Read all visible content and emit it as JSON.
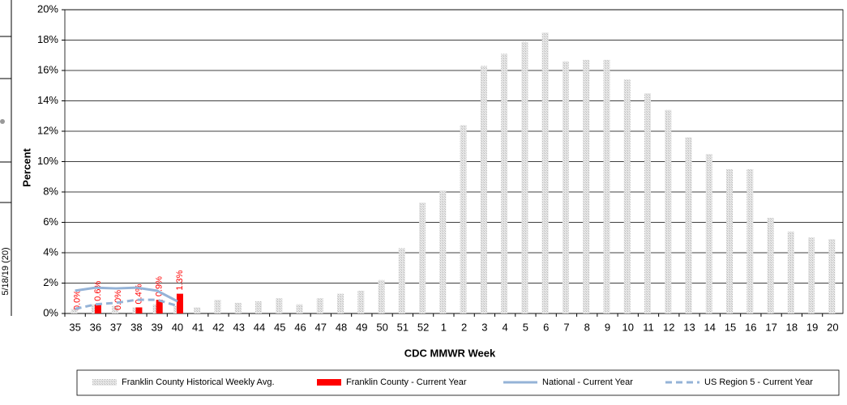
{
  "chart_data": {
    "type": "bar",
    "side_label": "5/18/19 (20)",
    "x_label": "CDC MMWR Week",
    "y_label": "Percent",
    "categories": [
      "35",
      "36",
      "37",
      "38",
      "39",
      "40",
      "41",
      "42",
      "43",
      "44",
      "45",
      "46",
      "47",
      "48",
      "49",
      "50",
      "51",
      "52",
      "1",
      "2",
      "3",
      "4",
      "5",
      "6",
      "7",
      "8",
      "9",
      "10",
      "11",
      "12",
      "13",
      "14",
      "15",
      "16",
      "17",
      "18",
      "19",
      "20"
    ],
    "series": [
      {
        "name": "Franklin County Historical Weekly Avg.",
        "kind": "bar",
        "color": "#d4d4d4",
        "values": [
          0.3,
          0.6,
          0.5,
          0.4,
          0.6,
          0.5,
          0.4,
          0.9,
          0.7,
          0.8,
          1.0,
          0.6,
          1.0,
          1.3,
          1.5,
          2.2,
          4.3,
          7.3,
          8.1,
          12.4,
          16.3,
          17.1,
          17.9,
          18.5,
          16.6,
          16.7,
          16.7,
          15.4,
          14.5,
          13.4,
          11.6,
          10.5,
          9.5,
          9.5,
          6.3,
          5.4,
          5.0,
          4.9
        ]
      },
      {
        "name": "Franklin County - Current Year",
        "kind": "bar",
        "color": "#ff0000",
        "values": [
          0.0,
          0.6,
          0.0,
          0.4,
          0.9,
          1.3,
          null,
          null,
          null,
          null,
          null,
          null,
          null,
          null,
          null,
          null,
          null,
          null,
          null,
          null,
          null,
          null,
          null,
          null,
          null,
          null,
          null,
          null,
          null,
          null,
          null,
          null,
          null,
          null,
          null,
          null,
          null,
          null
        ],
        "value_labels": [
          "0.0%",
          "0.6%",
          "0.0%",
          "0.4%",
          "0.9%",
          "1.3%",
          null,
          null,
          null,
          null,
          null,
          null,
          null,
          null,
          null,
          null,
          null,
          null,
          null,
          null,
          null,
          null,
          null,
          null,
          null,
          null,
          null,
          null,
          null,
          null,
          null,
          null,
          null,
          null,
          null,
          null,
          null,
          null
        ]
      },
      {
        "name": "National - Current Year",
        "kind": "line",
        "dash": false,
        "color": "#95b3d7",
        "values": [
          1.5,
          1.7,
          1.65,
          1.7,
          1.5,
          0.8,
          null,
          null,
          null,
          null,
          null,
          null,
          null,
          null,
          null,
          null,
          null,
          null,
          null,
          null,
          null,
          null,
          null,
          null,
          null,
          null,
          null,
          null,
          null,
          null,
          null,
          null,
          null,
          null,
          null,
          null,
          null,
          null
        ]
      },
      {
        "name": "US Region 5 - Current Year",
        "kind": "line",
        "dash": true,
        "color": "#95b3d7",
        "values": [
          0.3,
          0.6,
          0.7,
          0.9,
          0.9,
          0.5,
          null,
          null,
          null,
          null,
          null,
          null,
          null,
          null,
          null,
          null,
          null,
          null,
          null,
          null,
          null,
          null,
          null,
          null,
          null,
          null,
          null,
          null,
          null,
          null,
          null,
          null,
          null,
          null,
          null,
          null,
          null,
          null
        ]
      }
    ],
    "ylim": [
      0,
      20
    ],
    "yticks": [
      {
        "value": 0,
        "label": "0%"
      },
      {
        "value": 2,
        "label": "2%"
      },
      {
        "value": 4,
        "label": "4%"
      },
      {
        "value": 6,
        "label": "6%"
      },
      {
        "value": 8,
        "label": "8%"
      },
      {
        "value": 10,
        "label": "10%"
      },
      {
        "value": 12,
        "label": "12%"
      },
      {
        "value": 14,
        "label": "14%"
      },
      {
        "value": 16,
        "label": "16%"
      },
      {
        "value": 18,
        "label": "18%"
      },
      {
        "value": 20,
        "label": "20%"
      }
    ],
    "grid": true
  }
}
